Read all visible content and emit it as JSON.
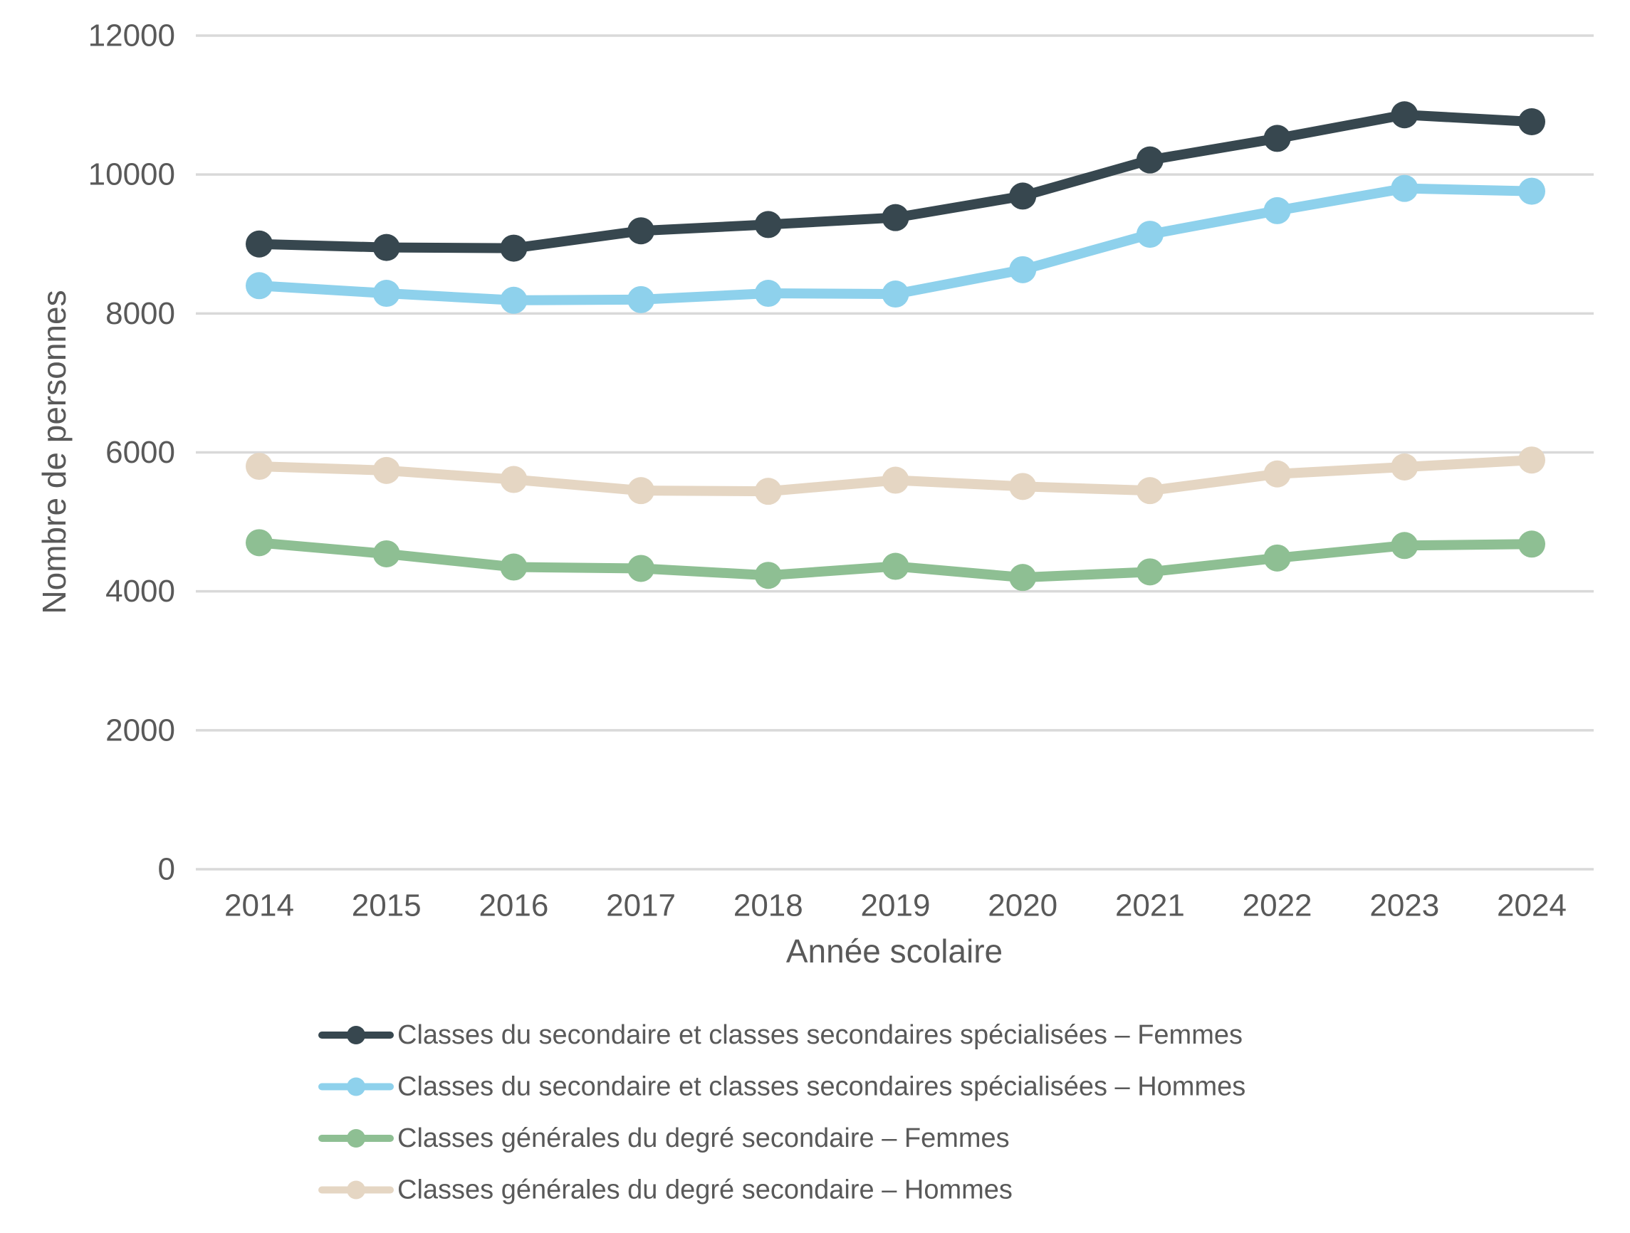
{
  "chart_data": {
    "type": "line",
    "title": "",
    "xlabel": "Année scolaire",
    "ylabel": "Nombre de personnes",
    "x": [
      2014,
      2015,
      2016,
      2017,
      2018,
      2019,
      2020,
      2021,
      2022,
      2023,
      2024
    ],
    "ylim": [
      0,
      12000
    ],
    "yticks": [
      0,
      2000,
      4000,
      6000,
      8000,
      10000,
      12000
    ],
    "grid": "horizontal",
    "legend_position": "bottom",
    "series": [
      {
        "name": "Classes du secondaire et classes secondaires spécialisées – Femmes",
        "color": "#37474F",
        "values": [
          9000,
          8950,
          8940,
          9190,
          9280,
          9380,
          9690,
          10210,
          10520,
          10860,
          10760
        ]
      },
      {
        "name": "Classes du secondaire et classes secondaires spécialisées – Hommes",
        "color": "#8ED1EC",
        "values": [
          8400,
          8290,
          8190,
          8200,
          8290,
          8280,
          8630,
          9140,
          9480,
          9800,
          9760
        ]
      },
      {
        "name": "Classes générales du degré secondaire – Femmes",
        "color": "#8EBF93",
        "values": [
          4700,
          4540,
          4350,
          4330,
          4230,
          4360,
          4200,
          4280,
          4480,
          4660,
          4680
        ]
      },
      {
        "name": "Classes générales du degré secondaire – Hommes",
        "color": "#E5D6C3",
        "values": [
          5800,
          5740,
          5610,
          5450,
          5440,
          5600,
          5510,
          5450,
          5690,
          5790,
          5890
        ]
      }
    ]
  },
  "style": {
    "background": "#FFFFFF",
    "grid_color": "#D9D9D9",
    "text_color": "#595959"
  }
}
